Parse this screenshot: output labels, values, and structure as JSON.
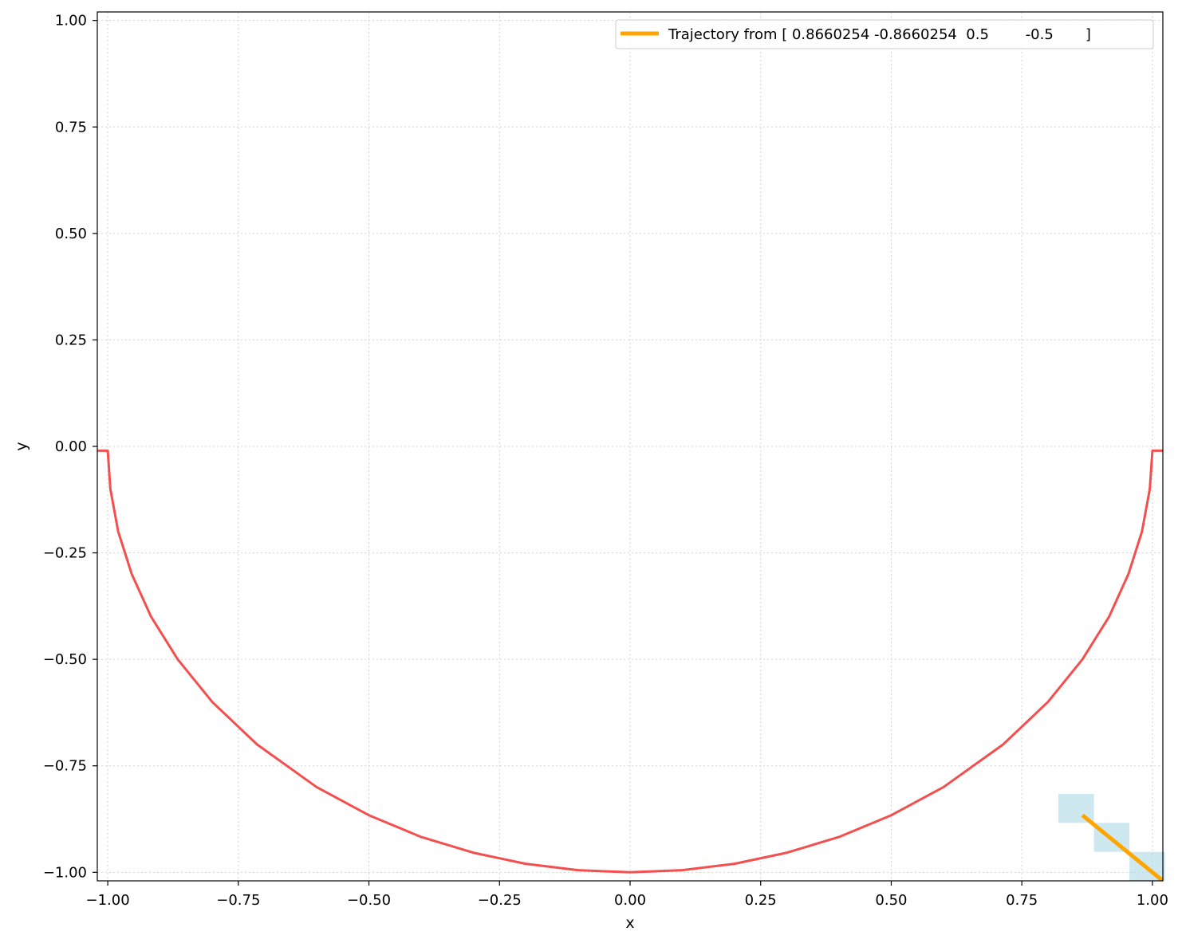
{
  "chart_data": {
    "type": "line",
    "title": "",
    "xlabel": "x",
    "ylabel": "y",
    "xlim": [
      -1.02,
      1.02
    ],
    "ylim": [
      -1.02,
      1.02
    ],
    "grid": true,
    "legend_position": "top-right",
    "xticks": [
      -1.0,
      -0.75,
      -0.5,
      -0.25,
      0.0,
      0.25,
      0.5,
      0.75,
      1.0
    ],
    "yticks": [
      -1.0,
      -0.75,
      -0.5,
      -0.25,
      0.0,
      0.25,
      0.5,
      0.75,
      1.0
    ],
    "xtick_labels": [
      "−1.00",
      "−0.75",
      "−0.50",
      "−0.25",
      "0.00",
      "0.25",
      "0.50",
      "0.75",
      "1.00"
    ],
    "ytick_labels": [
      "−1.00",
      "−0.75",
      "−0.50",
      "−0.25",
      "0.00",
      "0.25",
      "0.50",
      "0.75",
      "1.00"
    ],
    "series": [
      {
        "kind": "curve",
        "color": "#f44f4f",
        "points": [
          [
            -1.02,
            -0.01
          ],
          [
            -1.0,
            -0.01
          ],
          [
            -0.995,
            -0.1
          ],
          [
            -0.98,
            -0.2
          ],
          [
            -0.954,
            -0.3
          ],
          [
            -0.917,
            -0.4
          ],
          [
            -0.866,
            -0.5
          ],
          [
            -0.8,
            -0.6
          ],
          [
            -0.714,
            -0.7
          ],
          [
            -0.6,
            -0.8
          ],
          [
            -0.5,
            -0.866
          ],
          [
            -0.4,
            -0.917
          ],
          [
            -0.3,
            -0.954
          ],
          [
            -0.2,
            -0.98
          ],
          [
            -0.1,
            -0.995
          ],
          [
            0.0,
            -1.0
          ],
          [
            0.1,
            -0.995
          ],
          [
            0.2,
            -0.98
          ],
          [
            0.3,
            -0.954
          ],
          [
            0.4,
            -0.917
          ],
          [
            0.5,
            -0.866
          ],
          [
            0.6,
            -0.8
          ],
          [
            0.714,
            -0.7
          ],
          [
            0.8,
            -0.6
          ],
          [
            0.866,
            -0.5
          ],
          [
            0.917,
            -0.4
          ],
          [
            0.954,
            -0.3
          ],
          [
            0.98,
            -0.2
          ],
          [
            0.995,
            -0.1
          ],
          [
            1.0,
            -0.01
          ],
          [
            1.02,
            -0.01
          ]
        ]
      },
      {
        "name": "Trajectory from [ 0.8660254 -0.8660254  0.5        -0.5       ]",
        "kind": "trajectory",
        "color": "#ffa500",
        "points": [
          [
            0.866,
            -0.866
          ],
          [
            1.02,
            -1.02
          ]
        ]
      }
    ],
    "cells": [
      {
        "x": [
          0.82,
          0.888
        ],
        "y": [
          -0.884,
          -0.816
        ],
        "color": "#add8e6"
      },
      {
        "x": [
          0.888,
          0.956
        ],
        "y": [
          -0.952,
          -0.884
        ],
        "color": "#add8e6"
      },
      {
        "x": [
          0.956,
          1.024
        ],
        "y": [
          -1.02,
          -0.952
        ],
        "color": "#add8e6"
      }
    ]
  }
}
